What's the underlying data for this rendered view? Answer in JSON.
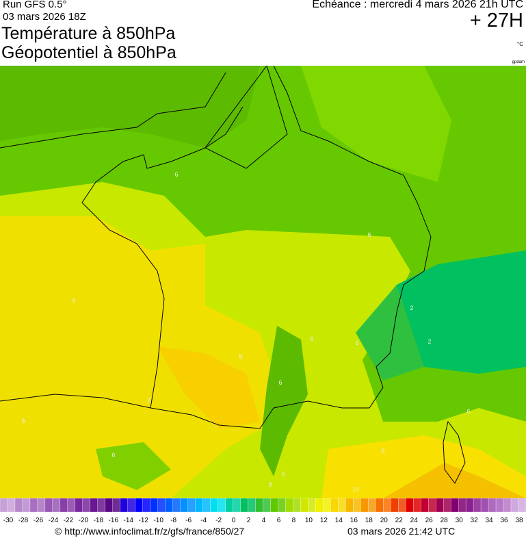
{
  "header": {
    "run": "Run GFS 0.5°",
    "run_date": "03 mars 2026 18Z",
    "title_line1": "Température à 850hPa",
    "title_line2": "Géopotentiel à 850hPa",
    "forecast": "Echéance : mercredi 4 mars 2026 21h UTC",
    "lead": "+ 27H",
    "unit": "°C",
    "credit": "gpdam"
  },
  "map": {
    "contour_labels": [
      "6",
      "8",
      "6",
      "2",
      "2",
      "6",
      "6",
      "8",
      "6",
      "8",
      "6",
      "6",
      "8",
      "10",
      "8",
      "6",
      "6"
    ]
  },
  "legend": {
    "labels": [
      "-30",
      "-28",
      "-26",
      "-24",
      "-22",
      "-20",
      "-18",
      "-16",
      "-14",
      "-12",
      "-10",
      "-8",
      "-6",
      "-4",
      "-2",
      "0",
      "2",
      "4",
      "6",
      "8",
      "10",
      "12",
      "14",
      "16",
      "18",
      "20",
      "22",
      "24",
      "26",
      "28",
      "30",
      "32",
      "34",
      "36",
      "38"
    ]
  },
  "footer": {
    "url": "© http://www.infoclimat.fr/z/gfs/france/850/27",
    "timestamp": "03 mars 2026 21:42 UTC"
  }
}
